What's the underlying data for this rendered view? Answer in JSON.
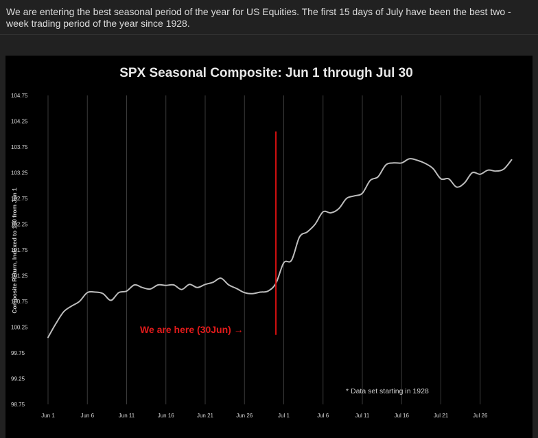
{
  "post": {
    "text": "We are entering the best seasonal period of the year for US Equities. The first 15 days of July have been the best two -week trading period of the year since 1928."
  },
  "chart_data": {
    "type": "line",
    "title": "SPX Seasonal Composite: Jun 1 through Jul 30",
    "ylabel": "Composite Return, Indexed to 100 from Jun 1",
    "xlabel": "",
    "ylim": [
      98.75,
      104.75
    ],
    "yticks": [
      98.75,
      99.25,
      99.75,
      100.25,
      100.75,
      101.25,
      101.75,
      102.25,
      102.75,
      103.25,
      103.75,
      104.25,
      104.75
    ],
    "ytick_labels": [
      "98.75",
      "99.25",
      "99.75",
      "100.25",
      "100.75",
      "101.25",
      "101.75",
      "102.25",
      "102.75",
      "103.25",
      "103.75",
      "104.25",
      "104.75"
    ],
    "xlim": [
      0,
      60
    ],
    "xticks": [
      0,
      5,
      10,
      15,
      20,
      25,
      30,
      35,
      40,
      45,
      50,
      55
    ],
    "xtick_labels": [
      "Jun 1",
      "Jun 6",
      "Jun 11",
      "Jun 16",
      "Jun 21",
      "Jun 26",
      "Jul 1",
      "Jul 6",
      "Jul 11",
      "Jul 16",
      "Jul 21",
      "Jul 26"
    ],
    "grid": "vertical",
    "line_color": "#bdbdbd",
    "marker": {
      "x": 29,
      "y_range": [
        100.1,
        104.05
      ],
      "color": "#d41010",
      "label": "We are here (30Jun) →"
    },
    "note": "* Data set starting in 1928",
    "x": [
      0,
      1,
      2,
      3,
      4,
      5,
      6,
      7,
      8,
      9,
      10,
      11,
      12,
      13,
      14,
      15,
      16,
      17,
      18,
      19,
      20,
      21,
      22,
      23,
      24,
      25,
      26,
      27,
      28,
      29,
      30,
      31,
      32,
      33,
      34,
      35,
      36,
      37,
      38,
      39,
      40,
      41,
      42,
      43,
      44,
      45,
      46,
      47,
      48,
      49,
      50,
      51,
      52,
      53,
      54,
      55,
      56,
      57,
      58,
      59
    ],
    "y": [
      100.05,
      100.32,
      100.55,
      100.66,
      100.75,
      100.92,
      100.93,
      100.9,
      100.77,
      100.92,
      100.95,
      101.07,
      101.02,
      100.99,
      101.07,
      101.06,
      101.07,
      100.98,
      101.08,
      101.02,
      101.08,
      101.12,
      101.2,
      101.07,
      101.0,
      100.92,
      100.9,
      100.93,
      100.95,
      101.1,
      101.5,
      101.55,
      102.0,
      102.1,
      102.25,
      102.49,
      102.47,
      102.55,
      102.75,
      102.8,
      102.85,
      103.1,
      103.17,
      103.4,
      103.44,
      103.44,
      103.52,
      103.49,
      103.43,
      103.33,
      103.13,
      103.13,
      102.97,
      103.05,
      103.25,
      103.22,
      103.3,
      103.28,
      103.32,
      103.5
    ]
  }
}
